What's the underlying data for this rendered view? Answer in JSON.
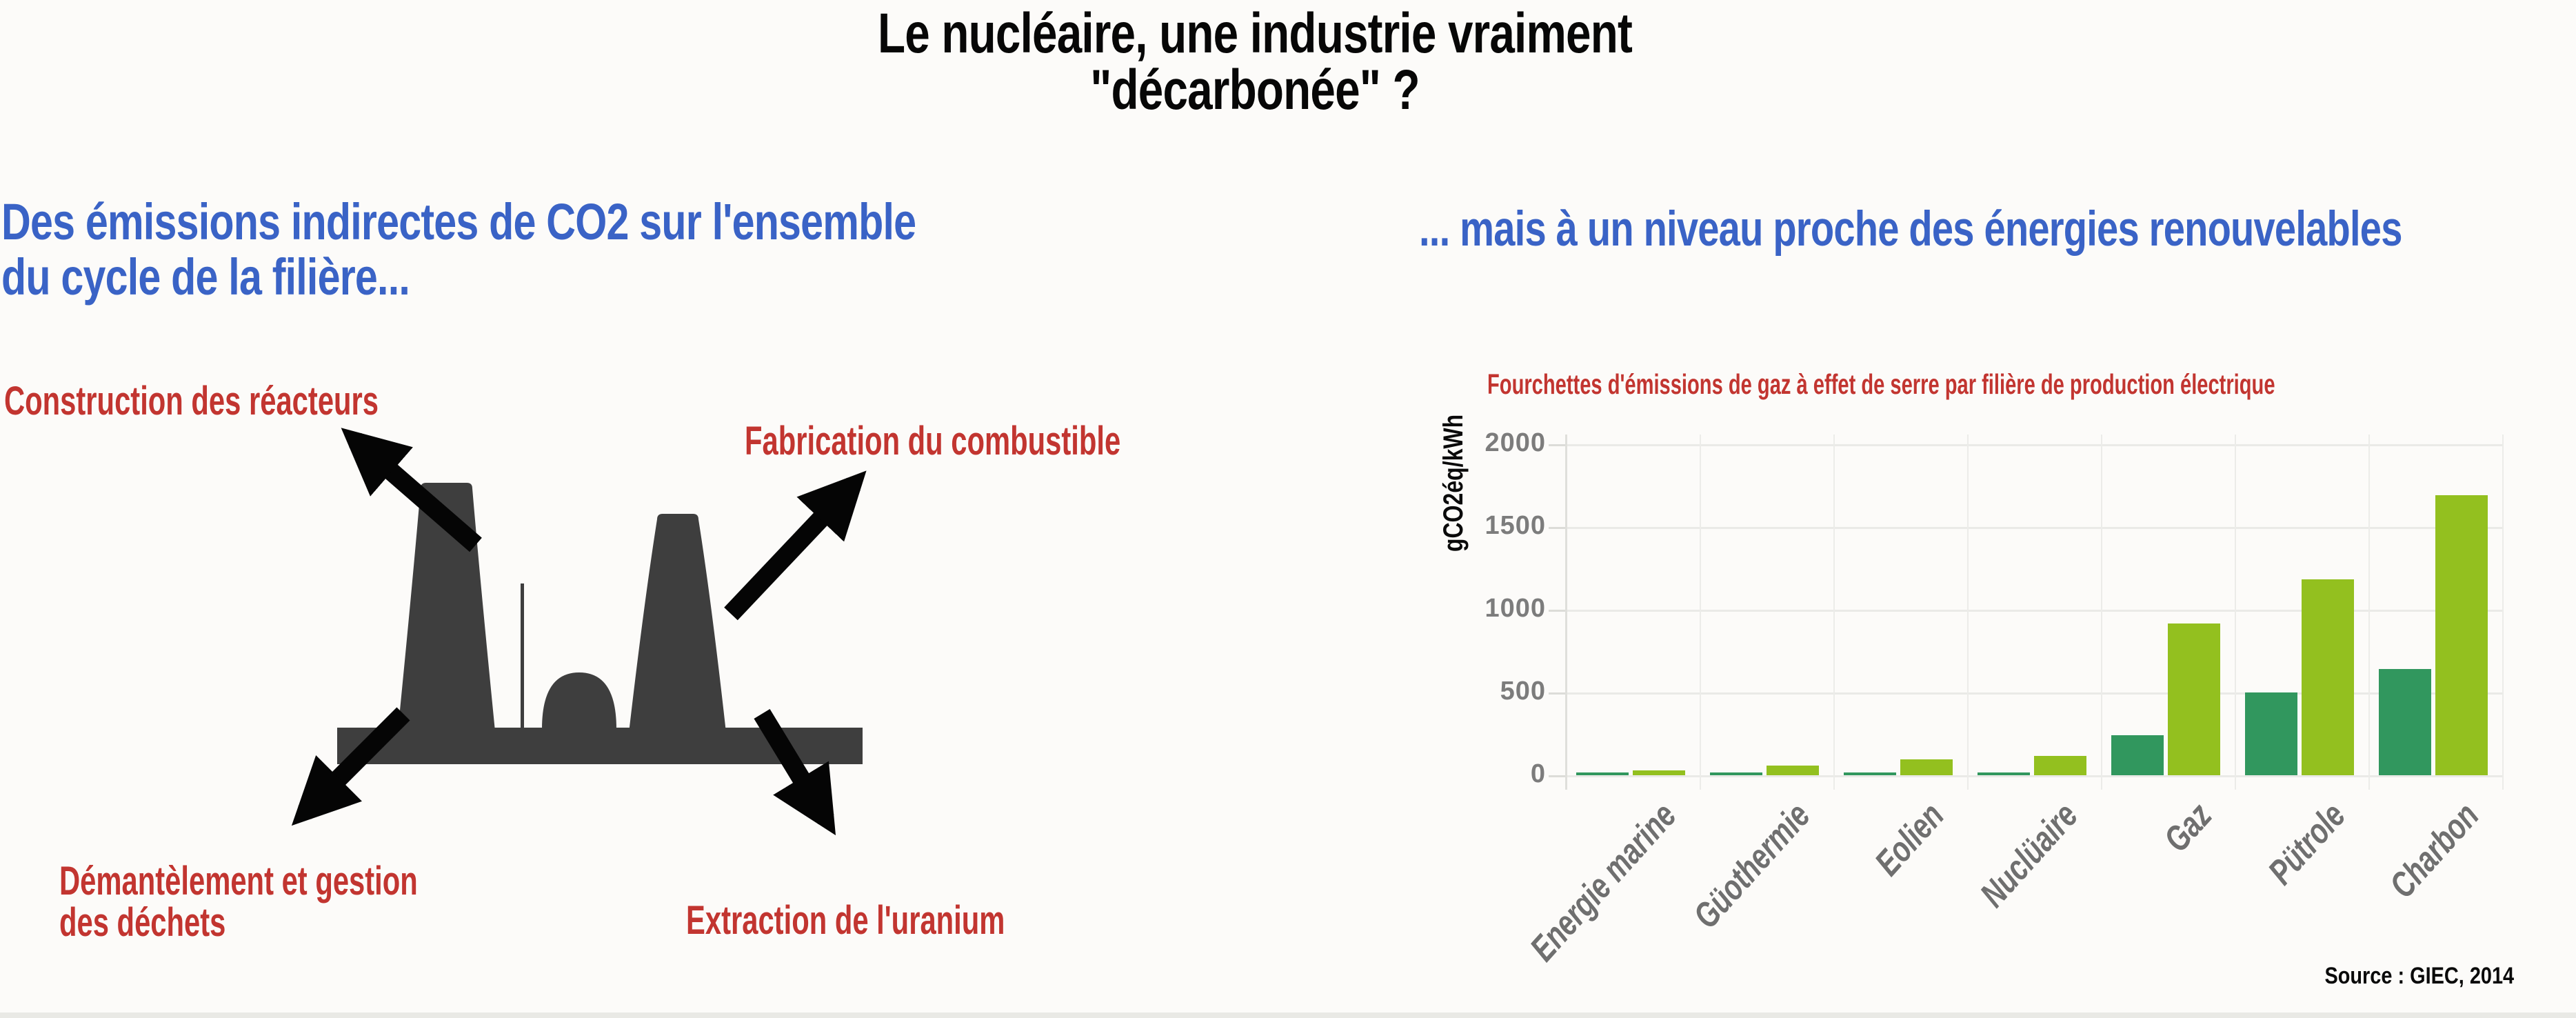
{
  "title": {
    "text": "Le nucléaire, une industrie vraiment\n\"décarbonée\" ?"
  },
  "left_section": {
    "heading": "Des émissions indirectes de CO2 sur l'ensemble\ndu cycle de la filière...",
    "labels": {
      "construction": "Construction des réacteurs",
      "fabrication": "Fabrication du combustible",
      "demantelement": "Démantèlement et gestion\ndes déchets",
      "extraction": "Extraction de l'uranium"
    }
  },
  "right_section": {
    "heading": "... mais à un niveau proche des énergies renouvelables"
  },
  "colors": {
    "heading_blue": "#3A63C6",
    "label_red": "#C23530",
    "bar_min_green": "#31975E",
    "bar_max_green": "#93C01F",
    "silhouette_gray": "#3E3E3E"
  },
  "chart_data": {
    "type": "bar",
    "title": "Fourchettes d'émissions de gaz à effet de serre par filière de production électrique",
    "ylabel": "gCO2éq/kWh",
    "source_label": "Source : GIEC, 2014",
    "categories": [
      "Energie marine",
      "Güothermie",
      "Eolien",
      "Nuclüaire",
      "Gaz",
      "Pütrole",
      "Charbon"
    ],
    "series": [
      {
        "name": "min",
        "color": "#31975E",
        "values": [
          15,
          15,
          10,
          10,
          240,
          500,
          640
        ]
      },
      {
        "name": "max",
        "color": "#93C01F",
        "values": [
          30,
          60,
          95,
          115,
          915,
          1185,
          1690
        ]
      }
    ],
    "ylim": [
      0,
      2000
    ],
    "yticks": [
      0,
      500,
      1000,
      1500,
      2000
    ],
    "grid": true,
    "legend": "none"
  }
}
